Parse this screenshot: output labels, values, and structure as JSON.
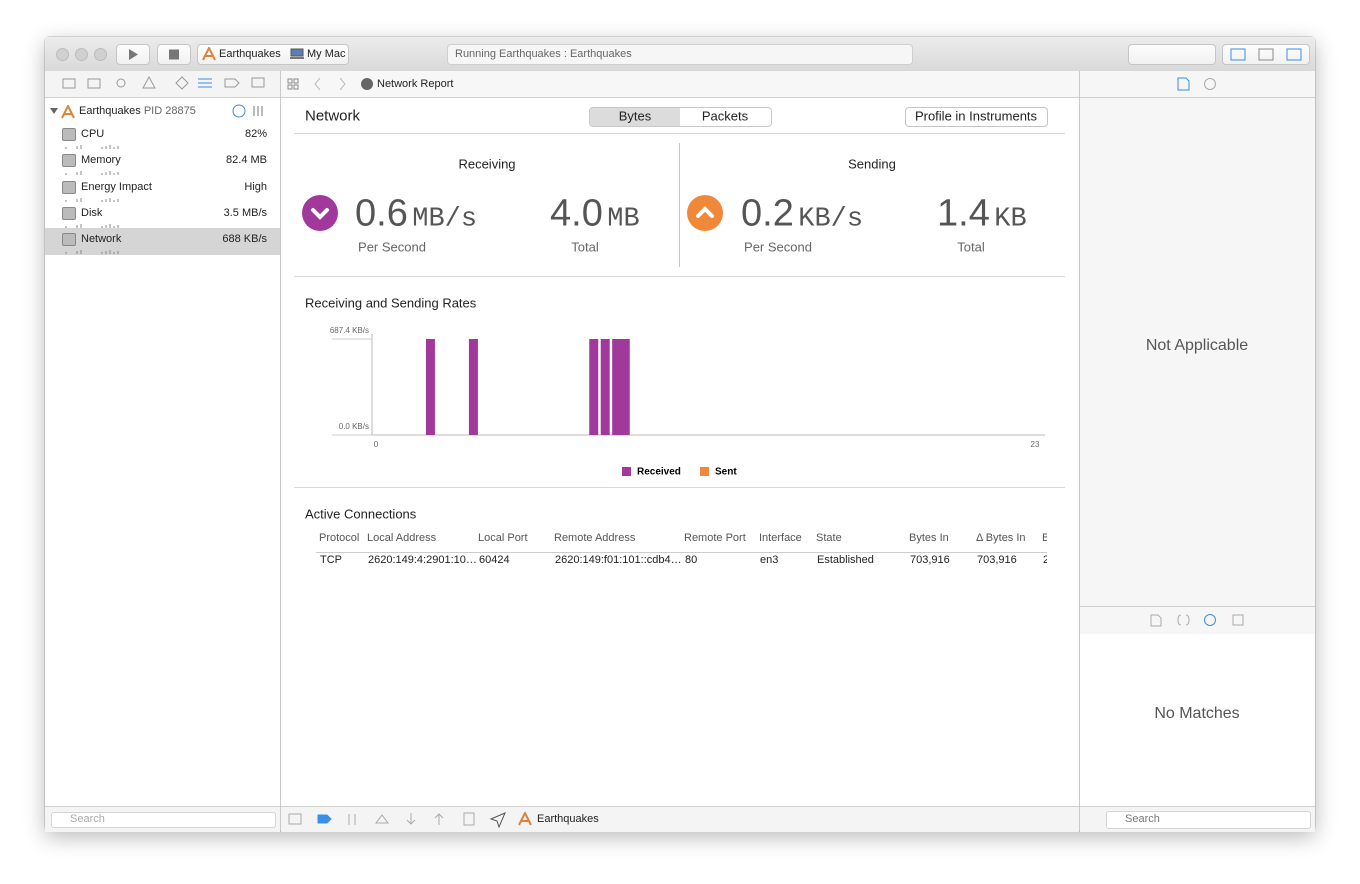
{
  "toolbar": {
    "scheme": "Earthquakes",
    "destination": "My Mac",
    "status": "Running Earthquakes : Earthquakes"
  },
  "navigator": {
    "process": "Earthquakes",
    "pid": "PID 28875",
    "gauges": [
      {
        "name": "CPU",
        "value": "82%"
      },
      {
        "name": "Memory",
        "value": "82.4 MB"
      },
      {
        "name": "Energy Impact",
        "value": "High"
      },
      {
        "name": "Disk",
        "value": "3.5 MB/s"
      },
      {
        "name": "Network",
        "value": "688 KB/s"
      }
    ],
    "search": "Search"
  },
  "editor": {
    "breadcrumb": "Network Report",
    "title": "Network",
    "tabs": [
      "Bytes",
      "Packets"
    ],
    "profile_button": "Profile in Instruments",
    "receiving": {
      "title": "Receiving",
      "rate": "0.6",
      "rate_unit": "MB/s",
      "rate_label": "Per Second",
      "total": "4.0",
      "total_unit": "MB",
      "total_label": "Total"
    },
    "sending": {
      "title": "Sending",
      "rate": "0.2",
      "rate_unit": "KB/s",
      "rate_label": "Per Second",
      "total": "1.4",
      "total_unit": "KB",
      "total_label": "Total"
    }
  },
  "chart_data": {
    "type": "bar",
    "title": "Receiving and Sending Rates",
    "x": [
      1.9,
      3.4,
      7.6,
      8.0,
      8.4,
      8.7
    ],
    "series": [
      {
        "name": "Received",
        "color": "#a0399b",
        "values": [
          687.4,
          687.4,
          687.4,
          687.4,
          687.4,
          687.4
        ]
      },
      {
        "name": "Sent",
        "color": "#f0883a",
        "values": [
          0,
          0,
          0,
          0,
          0,
          0
        ]
      }
    ],
    "xlim": [
      0,
      23
    ],
    "xticks": [
      0,
      23
    ],
    "ylim": [
      0,
      687.4
    ],
    "yticks": [
      {
        "value": 0,
        "label": "0.0 KB/s"
      },
      {
        "value": 687.4,
        "label": "687.4 KB/s"
      }
    ],
    "legend": "bottom"
  },
  "connections": {
    "title": "Active Connections",
    "columns": [
      "Protocol",
      "Local Address",
      "Local Port",
      "Remote Address",
      "Remote Port",
      "Interface",
      "State",
      "Bytes In",
      "Δ Bytes In",
      "B"
    ],
    "rows": [
      [
        "TCP",
        "2620:149:4:2901:10…",
        "60424",
        "2620:149:f01:101::cdb4…",
        "80",
        "en3",
        "Established",
        "703,916",
        "703,916",
        "2"
      ]
    ]
  },
  "bottom_bar": {
    "target": "Earthquakes"
  },
  "inspector": {
    "not_applicable": "Not Applicable",
    "no_matches": "No Matches",
    "search": "Search"
  }
}
